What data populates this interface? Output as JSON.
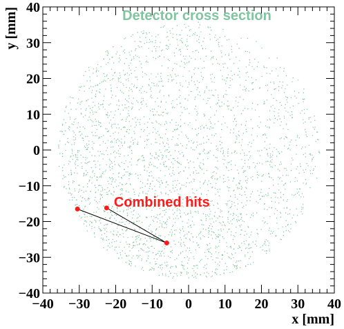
{
  "chart_data": {
    "type": "scatter",
    "title": "Detector cross section",
    "xlabel": "x [mm]",
    "ylabel": "y [mm]",
    "xlim": [
      -40,
      40
    ],
    "ylim": [
      -40,
      40
    ],
    "major_ticks": [
      -40,
      -30,
      -20,
      -10,
      0,
      10,
      20,
      30,
      40
    ],
    "tick_labels": [
      "−40",
      "−30",
      "−20",
      "−10",
      "0",
      "10",
      "20",
      "30",
      "40"
    ],
    "grid": false,
    "detector_region": {
      "center": [
        0,
        0
      ],
      "radius": 36,
      "density": "higher toward lower-left"
    },
    "series": [
      {
        "name": "Combined hits",
        "points": [
          {
            "x": -30.5,
            "y": -16.5
          },
          {
            "x": -22.5,
            "y": -16.2
          },
          {
            "x": -6.0,
            "y": -26.0
          }
        ],
        "segments": [
          [
            0,
            2
          ],
          [
            1,
            2
          ]
        ]
      }
    ],
    "annotations": [
      {
        "text": "Combined hits",
        "x": -20.5,
        "y": -14.5
      }
    ],
    "colors": {
      "background_points": "#7dbf9e",
      "title": "#80c4a0",
      "hits": "#ff1a1a",
      "hit_lines": "#000000",
      "annotation": "#ff1a1a"
    }
  }
}
